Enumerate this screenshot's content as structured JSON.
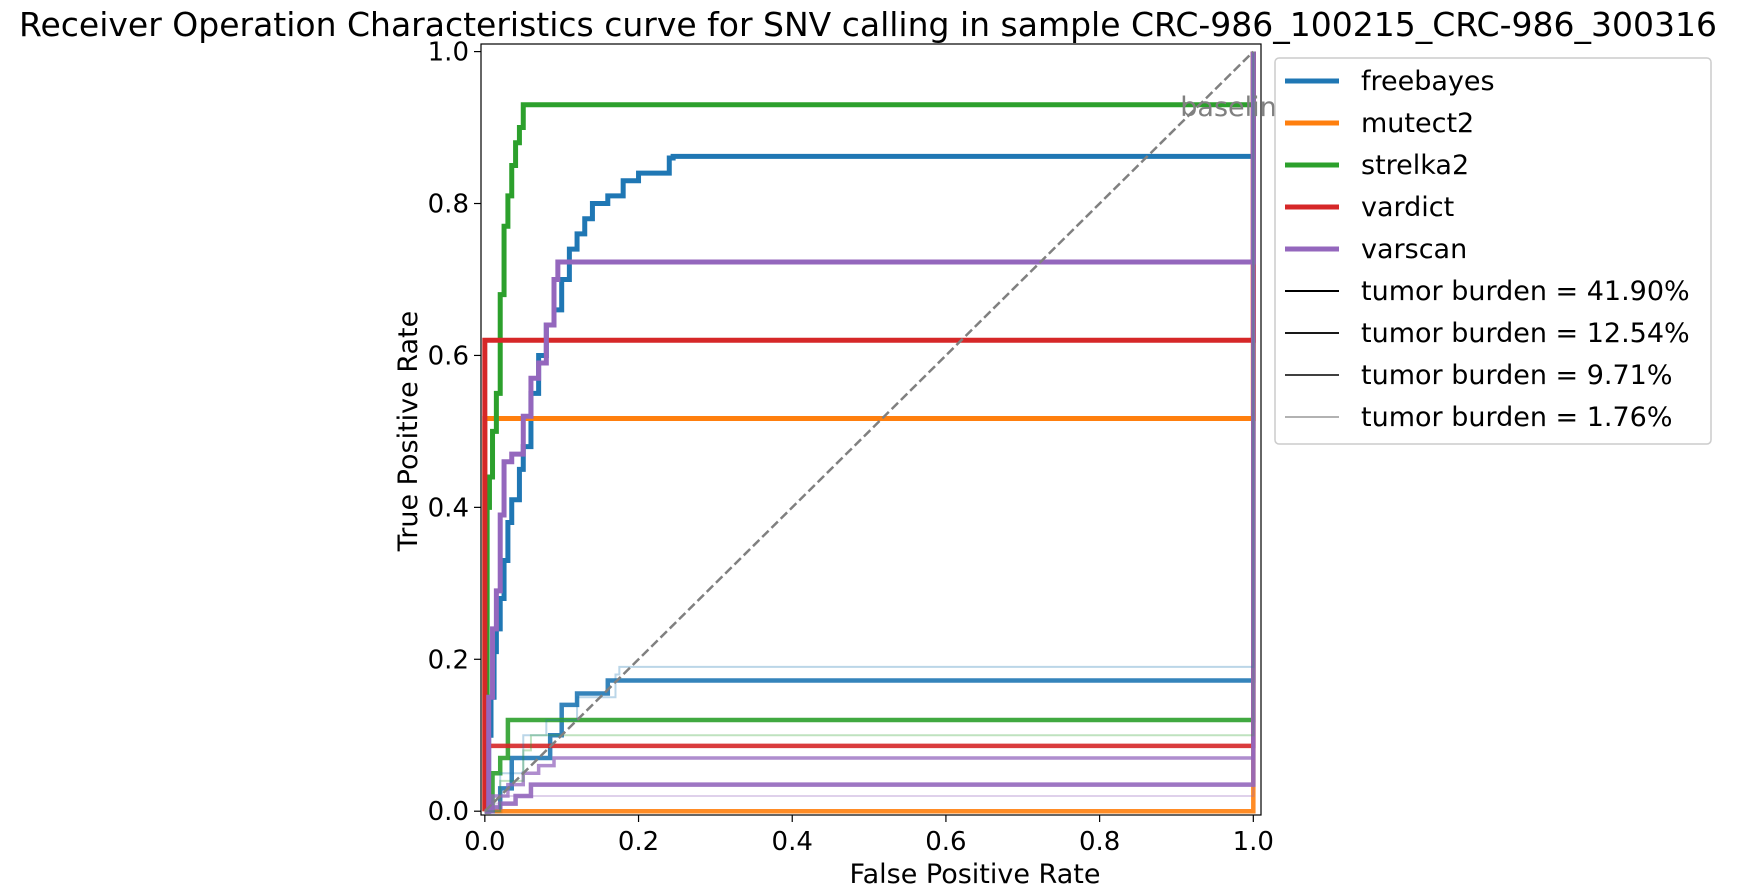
{
  "chart_data": {
    "type": "line",
    "title": "Receiver Operation Characteristics curve for SNV calling in sample CRC-986_100215_CRC-986_300316",
    "xlabel": "False Positive Rate",
    "ylabel": "True Positive Rate",
    "xlim": [
      -0.005,
      1.01
    ],
    "ylim": [
      -0.005,
      1.01
    ],
    "xticks": [
      0.0,
      0.2,
      0.4,
      0.6,
      0.8,
      1.0
    ],
    "yticks": [
      0.0,
      0.2,
      0.4,
      0.6,
      0.8,
      1.0
    ],
    "xtick_labels": [
      "0.0",
      "0.2",
      "0.4",
      "0.6",
      "0.8",
      "1.0"
    ],
    "ytick_labels": [
      "0.0",
      "0.2",
      "0.4",
      "0.6",
      "0.8",
      "1.0"
    ],
    "grid": false,
    "legend_position": "outside upper-right",
    "annotation": "baseline",
    "baseline": {
      "x": [
        0,
        1
      ],
      "y": [
        0,
        1
      ],
      "color": "#808080",
      "style": "dashed"
    },
    "series": [
      {
        "name": "freebayes",
        "color": "#1f77b4",
        "burden": "41.90%",
        "x": [
          0,
          0.005,
          0.008,
          0.012,
          0.015,
          0.02,
          0.025,
          0.03,
          0.035,
          0.045,
          0.05,
          0.06,
          0.07,
          0.08,
          0.09,
          0.1,
          0.11,
          0.12,
          0.13,
          0.14,
          0.16,
          0.18,
          0.19,
          0.2,
          0.24,
          0.245,
          1.0,
          1.0
        ],
        "y": [
          0,
          0.1,
          0.15,
          0.21,
          0.24,
          0.28,
          0.33,
          0.38,
          0.41,
          0.45,
          0.48,
          0.55,
          0.6,
          0.64,
          0.66,
          0.7,
          0.74,
          0.76,
          0.78,
          0.8,
          0.81,
          0.83,
          0.83,
          0.84,
          0.86,
          0.862,
          0.862,
          1.0
        ]
      },
      {
        "name": "freebayes",
        "color": "#1f77b4",
        "burden": "12.54%",
        "x": [
          0,
          0.02,
          0.035,
          0.06,
          0.085,
          0.1,
          0.12,
          0.16,
          0.175,
          1.0,
          1.0
        ],
        "y": [
          0,
          0.03,
          0.07,
          0.07,
          0.1,
          0.14,
          0.155,
          0.172,
          0.172,
          0.172,
          1.0
        ]
      },
      {
        "name": "mutect2",
        "color": "#ff7f0e",
        "burden": "41.90%",
        "x": [
          0,
          0.0,
          1.0,
          1.0
        ],
        "y": [
          0,
          0.517,
          0.517,
          1.0
        ]
      },
      {
        "name": "mutect2",
        "color": "#ff7f0e",
        "burden": "12.54%",
        "x": [
          0,
          1.0,
          1.0
        ],
        "y": [
          0,
          0,
          1.0
        ]
      },
      {
        "name": "strelka2",
        "color": "#2ca02c",
        "burden": "41.90%",
        "x": [
          0,
          0.003,
          0.006,
          0.01,
          0.015,
          0.02,
          0.025,
          0.03,
          0.035,
          0.04,
          0.045,
          0.05,
          1.0,
          1.0
        ],
        "y": [
          0,
          0.4,
          0.44,
          0.5,
          0.55,
          0.68,
          0.77,
          0.81,
          0.85,
          0.88,
          0.9,
          0.93,
          0.93,
          1.0
        ]
      },
      {
        "name": "strelka2",
        "color": "#2ca02c",
        "burden": "12.54%",
        "x": [
          0,
          0.01,
          0.02,
          0.03,
          1.0,
          1.0
        ],
        "y": [
          0,
          0.05,
          0.07,
          0.12,
          0.12,
          1.0
        ]
      },
      {
        "name": "vardict",
        "color": "#d62728",
        "burden": "41.90%",
        "x": [
          0,
          0.0,
          1.0,
          1.0
        ],
        "y": [
          0,
          0.62,
          0.62,
          1.0
        ]
      },
      {
        "name": "vardict",
        "color": "#d62728",
        "burden": "12.54%",
        "x": [
          0,
          0.003,
          1.0,
          1.0
        ],
        "y": [
          0,
          0.086,
          0.086,
          1.0
        ]
      },
      {
        "name": "varscan",
        "color": "#9467bd",
        "burden": "41.90%",
        "x": [
          0,
          0.005,
          0.01,
          0.015,
          0.02,
          0.025,
          0.035,
          0.05,
          0.06,
          0.07,
          0.08,
          0.09,
          0.095,
          1.0,
          1.0
        ],
        "y": [
          0,
          0.15,
          0.24,
          0.29,
          0.39,
          0.46,
          0.47,
          0.52,
          0.57,
          0.59,
          0.64,
          0.7,
          0.723,
          0.723,
          1.0
        ]
      },
      {
        "name": "varscan",
        "color": "#9467bd",
        "burden": "12.54%",
        "x": [
          0,
          0.01,
          0.02,
          0.04,
          0.06,
          1.0,
          1.0
        ],
        "y": [
          0,
          0.005,
          0.01,
          0.02,
          0.035,
          0.035,
          1.0
        ]
      },
      {
        "name": "varscan",
        "color": "#9467bd",
        "burden": "9.71%",
        "x": [
          0,
          0.01,
          0.03,
          0.05,
          0.07,
          0.09,
          1.0,
          1.0
        ],
        "y": [
          0,
          0.02,
          0.035,
          0.05,
          0.06,
          0.07,
          0.07,
          1.0
        ]
      },
      {
        "name": "freebayes",
        "color": "#1f77b4",
        "burden": "1.76%",
        "x": [
          0,
          0.02,
          0.05,
          0.08,
          0.12,
          0.17,
          0.175,
          1.0,
          1.0
        ],
        "y": [
          0,
          0.05,
          0.1,
          0.12,
          0.15,
          0.18,
          0.19,
          0.19,
          1.0
        ]
      },
      {
        "name": "strelka2",
        "color": "#2ca02c",
        "burden": "1.76%",
        "x": [
          0,
          0.02,
          0.05,
          0.06,
          1.0,
          1.0
        ],
        "y": [
          0,
          0.04,
          0.08,
          0.1,
          0.1,
          1.0
        ]
      },
      {
        "name": "varscan",
        "color": "#9467bd",
        "burden": "1.76%",
        "x": [
          0,
          0.01,
          0.02,
          1.0,
          1.0
        ],
        "y": [
          0,
          0.01,
          0.02,
          0.02,
          1.0
        ]
      }
    ],
    "legend": [
      {
        "label": "freebayes",
        "color": "#1f77b4",
        "width": 5
      },
      {
        "label": "mutect2",
        "color": "#ff7f0e",
        "width": 5
      },
      {
        "label": "strelka2",
        "color": "#2ca02c",
        "width": 5
      },
      {
        "label": "vardict",
        "color": "#d62728",
        "width": 5
      },
      {
        "label": "varscan",
        "color": "#9467bd",
        "width": 5
      },
      {
        "label": "tumor burden = 41.90%",
        "color": "#000000",
        "opacity": 1.0,
        "width": 2
      },
      {
        "label": "tumor burden = 12.54%",
        "color": "#000000",
        "opacity": 0.9,
        "width": 2
      },
      {
        "label": "tumor burden = 9.71%",
        "color": "#000000",
        "opacity": 0.75,
        "width": 2
      },
      {
        "label": "tumor burden = 1.76%",
        "color": "#000000",
        "opacity": 0.3,
        "width": 2
      }
    ]
  }
}
